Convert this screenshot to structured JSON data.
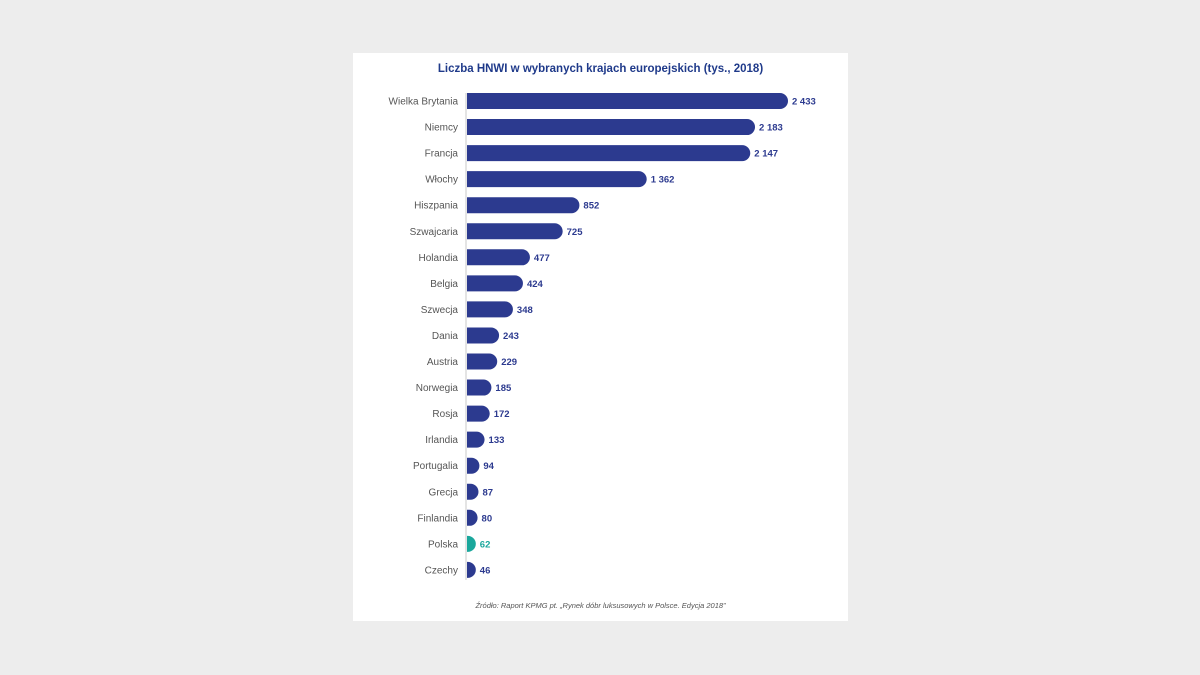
{
  "chart_data": {
    "type": "bar",
    "orientation": "horizontal",
    "title": "Liczba HNWI w wybranych krajach europejskich (tys., 2018)",
    "source": "Źródło: Raport KPMG pt. „Rynek dóbr luksusowych w Polsce. Edycja 2018”",
    "categories": [
      "Wielka Brytania",
      "Niemcy",
      "Francja",
      "Włochy",
      "Hiszpania",
      "Szwajcaria",
      "Holandia",
      "Belgia",
      "Szwecja",
      "Dania",
      "Austria",
      "Norwegia",
      "Rosja",
      "Irlandia",
      "Portugalia",
      "Grecja",
      "Finlandia",
      "Polska",
      "Czechy"
    ],
    "values": [
      2433,
      2183,
      2147,
      1362,
      852,
      725,
      477,
      424,
      348,
      243,
      229,
      185,
      172,
      133,
      94,
      87,
      80,
      62,
      46
    ],
    "value_labels": [
      "2 433",
      "2 183",
      "2 147",
      "1 362",
      "852",
      "725",
      "477",
      "424",
      "348",
      "243",
      "229",
      "185",
      "172",
      "133",
      "94",
      "87",
      "80",
      "62",
      "46"
    ],
    "highlight_category": "Polska",
    "colors": {
      "bar": "#2c3a8f",
      "highlight": "#1aa79c",
      "label": "#555555",
      "value": "#2c3a8f",
      "axis": "#bbbbbb"
    },
    "xlim": [
      0,
      2433
    ],
    "grid": false,
    "legend": "none"
  }
}
